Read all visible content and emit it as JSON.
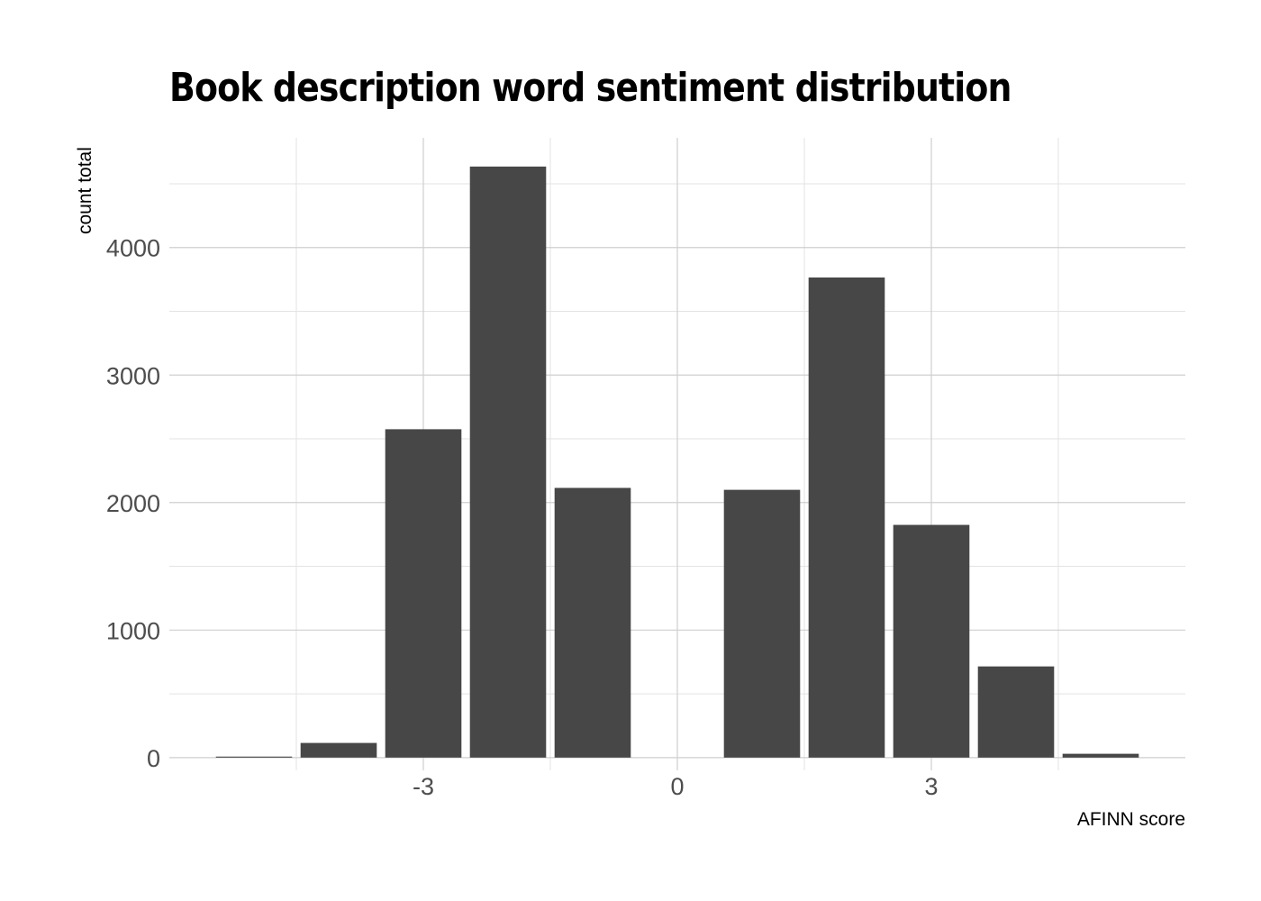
{
  "chart_data": {
    "type": "bar",
    "title": "Book description word sentiment distribution",
    "xlabel": "AFINN score",
    "ylabel": "count total",
    "x": [
      -5,
      -4,
      -3,
      -2,
      -1,
      1,
      2,
      3,
      4,
      5
    ],
    "values": [
      8,
      115,
      2575,
      4635,
      2115,
      2100,
      3765,
      1825,
      715,
      30
    ],
    "x_ticks": [
      -3,
      0,
      3
    ],
    "y_ticks": [
      0,
      1000,
      2000,
      3000,
      4000
    ],
    "xlim": [
      -6,
      6
    ],
    "ylim": [
      -100,
      4860
    ],
    "bar_color": "#474747",
    "grid": true,
    "legend": "none"
  }
}
